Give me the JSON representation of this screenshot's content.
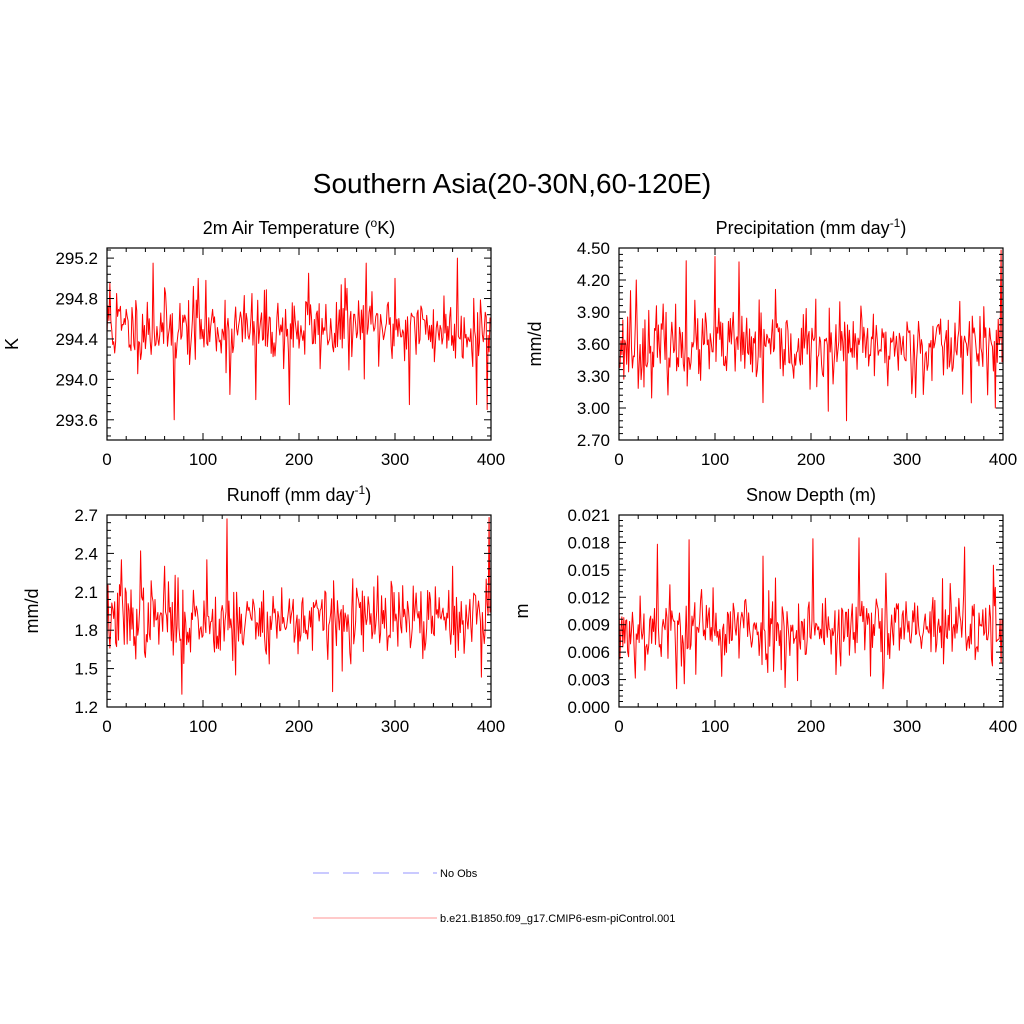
{
  "title": "Southern Asia(20-30N,60-120E)",
  "colors": {
    "series": "#ff0000",
    "obs": "#aaaaff",
    "legend_series": "#ffaaaa"
  },
  "legend": {
    "items": [
      {
        "label": "No Obs",
        "style": "dashed",
        "color": "#aaaaff"
      },
      {
        "label": "b.e21.B1850.f09_g17.CMIP6-esm-piControl.001",
        "style": "solid",
        "color": "#ffaaaa"
      }
    ]
  },
  "chart_data": [
    {
      "type": "line",
      "title_main": "2m Air Temperature (",
      "title_sup": "o",
      "title_tail": "K)",
      "ylabel": "K",
      "xlim": [
        0,
        400
      ],
      "ylim": [
        293.4,
        295.3
      ],
      "xticks": [
        0,
        100,
        200,
        300,
        400
      ],
      "yticks": [
        293.6,
        294.0,
        294.4,
        294.8,
        295.2
      ],
      "ytick_labels": [
        "293.6",
        "294.0",
        "294.4",
        "294.8",
        "295.2"
      ],
      "series": [
        {
          "name": "b.e21.B1850.f09_g17.CMIP6-esm-piControl.001",
          "n": 400,
          "mean": 294.5,
          "spread": 0.22,
          "seed": 11,
          "spikes": [
            [
              3,
              294.95
            ],
            [
              10,
              294.85
            ],
            [
              48,
              295.15
            ],
            [
              70,
              293.6
            ],
            [
              95,
              295.0
            ],
            [
              128,
              293.85
            ],
            [
              155,
              293.8
            ],
            [
              190,
              293.75
            ],
            [
              210,
              295.05
            ],
            [
              248,
              295.0
            ],
            [
              270,
              295.15
            ],
            [
              300,
              295.0
            ],
            [
              315,
              293.75
            ],
            [
              365,
              295.2
            ],
            [
              385,
              293.75
            ],
            [
              396,
              293.7
            ]
          ]
        }
      ]
    },
    {
      "type": "line",
      "title_main": "Precipitation (mm day",
      "title_sup": "-1",
      "title_tail": ")",
      "ylabel": "mm/d",
      "xlim": [
        0,
        400
      ],
      "ylim": [
        2.7,
        4.5
      ],
      "xticks": [
        0,
        100,
        200,
        300,
        400
      ],
      "yticks": [
        2.7,
        3.0,
        3.3,
        3.6,
        3.9,
        4.2,
        4.5
      ],
      "ytick_labels": [
        "2.70",
        "3.00",
        "3.30",
        "3.60",
        "3.90",
        "4.20",
        "4.50"
      ],
      "series": [
        {
          "name": "b.e21.B1850.f09_g17.CMIP6-esm-piControl.001",
          "n": 400,
          "mean": 3.57,
          "spread": 0.22,
          "seed": 23,
          "spikes": [
            [
              12,
              4.1
            ],
            [
              18,
              4.2
            ],
            [
              70,
              4.38
            ],
            [
              100,
              4.42
            ],
            [
              125,
              4.37
            ],
            [
              150,
              3.05
            ],
            [
              218,
              2.97
            ],
            [
              237,
              2.88
            ],
            [
              355,
              4.0
            ],
            [
              380,
              3.95
            ],
            [
              392,
              3.0
            ],
            [
              398,
              4.48
            ]
          ]
        }
      ]
    },
    {
      "type": "line",
      "title_main": "Runoff (mm day",
      "title_sup": "-1",
      "title_tail": ")",
      "ylabel": "mm/d",
      "xlim": [
        0,
        400
      ],
      "ylim": [
        1.2,
        2.7
      ],
      "xticks": [
        0,
        100,
        200,
        300,
        400
      ],
      "yticks": [
        1.2,
        1.5,
        1.8,
        2.1,
        2.4,
        2.7
      ],
      "ytick_labels": [
        "1.2",
        "1.5",
        "1.8",
        "2.1",
        "2.4",
        "2.7"
      ],
      "series": [
        {
          "name": "b.e21.B1850.f09_g17.CMIP6-esm-piControl.001",
          "n": 400,
          "mean": 1.88,
          "spread": 0.18,
          "seed": 37,
          "spikes": [
            [
              15,
              2.35
            ],
            [
              35,
              2.42
            ],
            [
              60,
              2.3
            ],
            [
              78,
              1.3
            ],
            [
              104,
              2.35
            ],
            [
              125,
              2.67
            ],
            [
              134,
              1.45
            ],
            [
              235,
              1.32
            ],
            [
              245,
              1.48
            ],
            [
              360,
              2.3
            ],
            [
              395,
              2.2
            ],
            [
              398,
              2.68
            ]
          ]
        }
      ]
    },
    {
      "type": "line",
      "title_main": "Snow Depth (m)",
      "title_sup": "",
      "title_tail": "",
      "ylabel": "m",
      "xlim": [
        0,
        400
      ],
      "ylim": [
        0.0,
        0.021
      ],
      "xticks": [
        0,
        100,
        200,
        300,
        400
      ],
      "yticks": [
        0.0,
        0.003,
        0.006,
        0.009,
        0.012,
        0.015,
        0.018,
        0.021
      ],
      "ytick_labels": [
        "0.000",
        "0.003",
        "0.006",
        "0.009",
        "0.012",
        "0.015",
        "0.018",
        "0.021"
      ],
      "series": [
        {
          "name": "b.e21.B1850.f09_g17.CMIP6-esm-piControl.001",
          "n": 400,
          "mean": 0.0085,
          "spread": 0.0028,
          "seed": 53,
          "spikes": [
            [
              40,
              0.0178
            ],
            [
              60,
              0.002
            ],
            [
              73,
              0.0183
            ],
            [
              150,
              0.0165
            ],
            [
              202,
              0.0184
            ],
            [
              250,
              0.0185
            ],
            [
              275,
              0.002
            ],
            [
              360,
              0.0175
            ],
            [
              390,
              0.0155
            ],
            [
              398,
              0.0048
            ]
          ]
        }
      ]
    }
  ]
}
